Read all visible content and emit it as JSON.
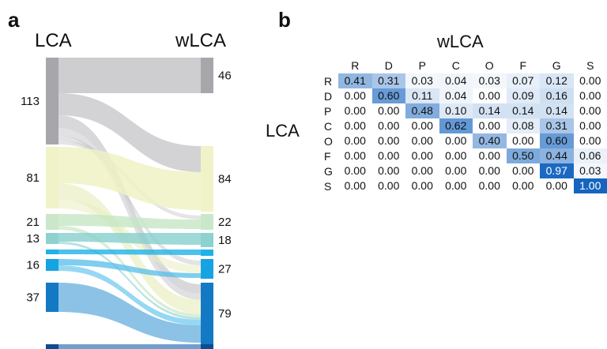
{
  "panels": {
    "a": "a",
    "b": "b"
  },
  "chart_data": [
    {
      "type": "sankey",
      "left_title": "LCA",
      "right_title": "wLCA",
      "left_nodes": [
        {
          "label": "113",
          "color": "#a6a6ab"
        },
        {
          "label": "81",
          "color": "#f0f3c8"
        },
        {
          "label": "21",
          "color": "#cbe7c9"
        },
        {
          "label": "13",
          "color": "#8ed2d0"
        },
        {
          "label": "",
          "color": "#1fb2e6"
        },
        {
          "label": "16",
          "color": "#16a3e2"
        },
        {
          "label": "37",
          "color": "#1379c4"
        },
        {
          "label": "",
          "color": "#0b4c93"
        }
      ],
      "right_nodes": [
        {
          "label": "46",
          "color": "#a6a6ab"
        },
        {
          "label": "84",
          "color": "#f0f3c8"
        },
        {
          "label": "22",
          "color": "#cbe7c9"
        },
        {
          "label": "18",
          "color": "#8ed2d0"
        },
        {
          "label": "",
          "color": "#1fb2e6"
        },
        {
          "label": "27",
          "color": "#16a3e2"
        },
        {
          "label": "79",
          "color": "#1379c4"
        },
        {
          "label": "",
          "color": "#0b4c93"
        }
      ]
    },
    {
      "type": "heatmap",
      "xlabel": "wLCA",
      "ylabel": "LCA",
      "columns": [
        "R",
        "D",
        "P",
        "C",
        "O",
        "F",
        "G",
        "S"
      ],
      "rows": [
        "R",
        "D",
        "P",
        "C",
        "O",
        "F",
        "G",
        "S"
      ],
      "values": [
        [
          0.41,
          0.31,
          0.03,
          0.04,
          0.03,
          0.07,
          0.12,
          0.0
        ],
        [
          0.0,
          0.6,
          0.11,
          0.04,
          0.0,
          0.09,
          0.16,
          0.0
        ],
        [
          0.0,
          0.0,
          0.48,
          0.1,
          0.14,
          0.14,
          0.14,
          0.0
        ],
        [
          0.0,
          0.0,
          0.0,
          0.62,
          0.0,
          0.08,
          0.31,
          0.0
        ],
        [
          0.0,
          0.0,
          0.0,
          0.0,
          0.4,
          0.0,
          0.6,
          0.0
        ],
        [
          0.0,
          0.0,
          0.0,
          0.0,
          0.0,
          0.5,
          0.44,
          0.06
        ],
        [
          0.0,
          0.0,
          0.0,
          0.0,
          0.0,
          0.0,
          0.97,
          0.03
        ],
        [
          0.0,
          0.0,
          0.0,
          0.0,
          0.0,
          0.0,
          0.0,
          1.0
        ]
      ],
      "color_low": "#ffffff",
      "color_high": "#1565c0"
    }
  ]
}
